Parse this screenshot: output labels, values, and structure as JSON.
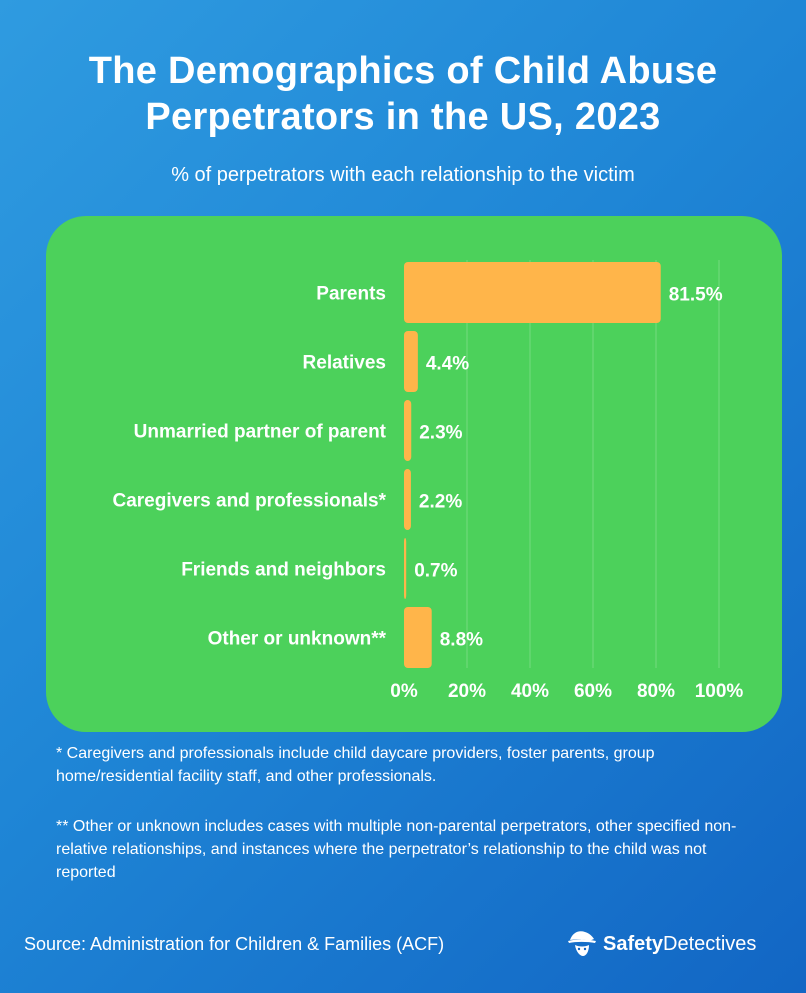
{
  "header": {
    "title_line1": "The Demographics of Child Abuse",
    "title_line2": "Perpetrators in the US, 2023",
    "subtitle": "% of perpetrators with each relationship to the victim"
  },
  "chart_data": {
    "type": "bar",
    "orientation": "horizontal",
    "categories": [
      "Parents",
      "Relatives",
      "Unmarried partner of parent",
      "Caregivers and professionals*",
      "Friends and neighbors",
      "Other or unknown**"
    ],
    "values": [
      81.5,
      4.4,
      2.3,
      2.2,
      0.7,
      8.8
    ],
    "value_labels": [
      "81.5%",
      "4.4%",
      "2.3%",
      "2.2%",
      "0.7%",
      "8.8%"
    ],
    "xlim": [
      0,
      100
    ],
    "x_ticks": [
      0,
      20,
      40,
      60,
      80,
      100
    ],
    "x_tick_labels": [
      "0%",
      "20%",
      "40%",
      "60%",
      "80%",
      "100%"
    ],
    "grid": true,
    "bar_color": "#ffb54a",
    "panel_color": "#4cd15b"
  },
  "notes": {
    "note1": "* Caregivers and professionals include child daycare providers, foster parents, group home/residential facility staff, and other professionals.",
    "note2": "** Other or unknown includes cases with multiple non-parental perpetrators, other specified non-relative relationships, and instances where the perpetrator’s relationship to the child was not reported"
  },
  "footer": {
    "source": "Source: Administration for Children & Families (ACF)",
    "brand_bold": "Safety",
    "brand_rest": "Detectives",
    "logo_icon": "detective-hat-icon"
  }
}
